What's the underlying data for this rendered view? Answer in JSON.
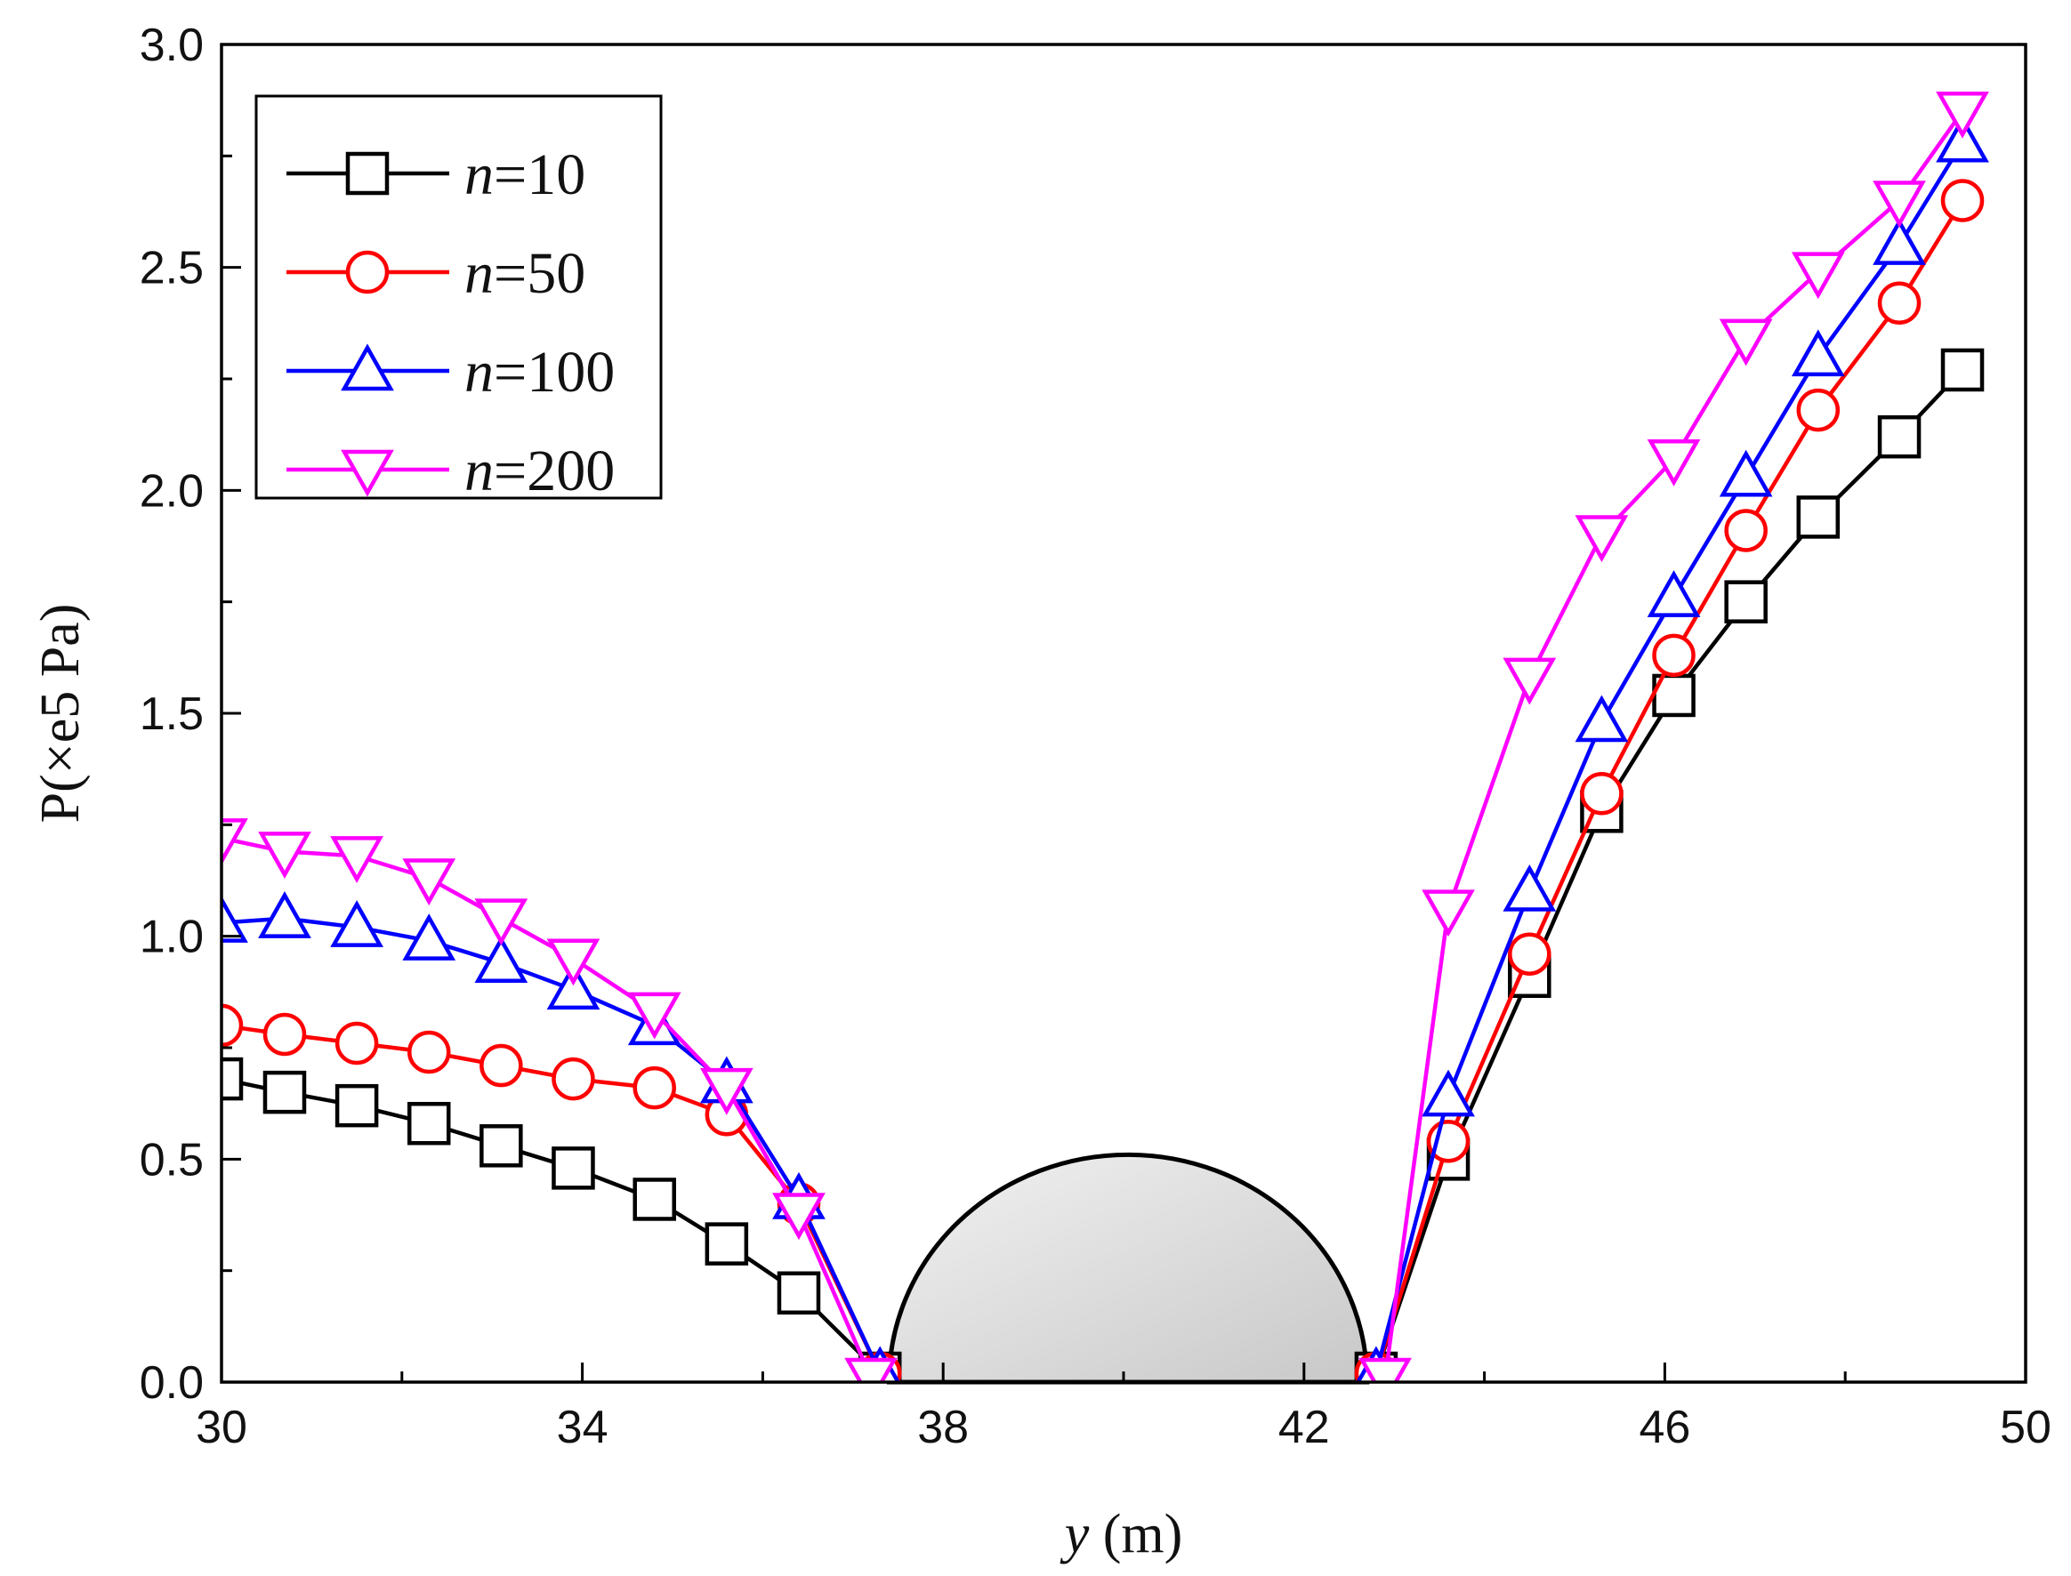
{
  "chart_data": {
    "type": "line",
    "title": "",
    "xlabel_var": "y",
    "xlabel_unit": " (m)",
    "ylabel": "P(×e5 Pa)",
    "xlim": [
      30,
      50
    ],
    "ylim": [
      0,
      3
    ],
    "x_ticks": [
      30,
      34,
      38,
      42,
      46,
      50
    ],
    "x_tick_labels": [
      "30",
      "34",
      "38",
      "42",
      "46",
      "50"
    ],
    "y_ticks": [
      0,
      0.5,
      1,
      1.5,
      2,
      2.5,
      3
    ],
    "y_tick_labels": [
      "0.0",
      "0.5",
      "1.0",
      "1.5",
      "2.0",
      "2.5",
      "3.0"
    ],
    "legend_position": "top-left",
    "obstacle": {
      "shape": "half-ellipse",
      "x_start": 37.4,
      "x_end": 42.7,
      "height": 0.51
    },
    "series": [
      {
        "name": "n=10",
        "var": "n",
        "label": "=10",
        "color": "#000000",
        "marker": "square",
        "segments": [
          [
            [
              30.0,
              0.68
            ],
            [
              30.7,
              0.65
            ],
            [
              31.5,
              0.62
            ],
            [
              32.3,
              0.58
            ],
            [
              33.1,
              0.53
            ],
            [
              33.9,
              0.48
            ],
            [
              34.8,
              0.41
            ],
            [
              35.6,
              0.31
            ],
            [
              36.4,
              0.2
            ],
            [
              37.3,
              0.02
            ]
          ],
          [
            [
              42.8,
              0.02
            ],
            [
              43.6,
              0.5
            ],
            [
              44.5,
              0.91
            ],
            [
              45.3,
              1.28
            ],
            [
              46.1,
              1.54
            ],
            [
              46.9,
              1.75
            ],
            [
              47.7,
              1.94
            ],
            [
              48.6,
              2.12
            ],
            [
              49.3,
              2.27
            ]
          ]
        ]
      },
      {
        "name": "n=50",
        "var": "n",
        "label": "=50",
        "color": "#ff0000",
        "marker": "circle",
        "segments": [
          [
            [
              30.0,
              0.8
            ],
            [
              30.7,
              0.78
            ],
            [
              31.5,
              0.76
            ],
            [
              32.3,
              0.74
            ],
            [
              33.1,
              0.71
            ],
            [
              33.9,
              0.68
            ],
            [
              34.8,
              0.66
            ],
            [
              35.6,
              0.6
            ],
            [
              36.4,
              0.4
            ],
            [
              37.3,
              0.02
            ]
          ],
          [
            [
              42.8,
              0.02
            ],
            [
              43.6,
              0.54
            ],
            [
              44.5,
              0.96
            ],
            [
              45.3,
              1.32
            ],
            [
              46.1,
              1.63
            ],
            [
              46.9,
              1.91
            ],
            [
              47.7,
              2.18
            ],
            [
              48.6,
              2.42
            ],
            [
              49.3,
              2.65
            ]
          ]
        ]
      },
      {
        "name": "n=100",
        "var": "n",
        "label": "=100",
        "color": "#0000ff",
        "marker": "triangle-up",
        "segments": [
          [
            [
              30.0,
              1.03
            ],
            [
              30.7,
              1.04
            ],
            [
              31.5,
              1.02
            ],
            [
              32.3,
              0.99
            ],
            [
              33.1,
              0.94
            ],
            [
              33.9,
              0.88
            ],
            [
              34.8,
              0.8
            ],
            [
              35.6,
              0.67
            ],
            [
              36.4,
              0.41
            ],
            [
              37.3,
              0.02
            ]
          ],
          [
            [
              42.8,
              0.02
            ],
            [
              43.6,
              0.64
            ],
            [
              44.5,
              1.1
            ],
            [
              45.3,
              1.48
            ],
            [
              46.1,
              1.76
            ],
            [
              46.9,
              2.03
            ],
            [
              47.7,
              2.3
            ],
            [
              48.6,
              2.55
            ],
            [
              49.3,
              2.78
            ]
          ]
        ]
      },
      {
        "name": "n=200",
        "var": "n",
        "label": "=200",
        "color": "#ff00ff",
        "marker": "triangle-down",
        "segments": [
          [
            [
              30.0,
              1.22
            ],
            [
              30.7,
              1.19
            ],
            [
              31.5,
              1.18
            ],
            [
              32.3,
              1.13
            ],
            [
              33.1,
              1.04
            ],
            [
              33.9,
              0.95
            ],
            [
              34.8,
              0.83
            ],
            [
              35.6,
              0.66
            ],
            [
              36.4,
              0.38
            ],
            [
              37.2,
              0.01
            ]
          ],
          [
            [
              42.9,
              0.01
            ],
            [
              43.6,
              1.06
            ],
            [
              44.5,
              1.58
            ],
            [
              45.3,
              1.9
            ],
            [
              46.1,
              2.07
            ],
            [
              46.9,
              2.34
            ],
            [
              47.7,
              2.49
            ],
            [
              48.6,
              2.65
            ],
            [
              49.3,
              2.85
            ]
          ]
        ]
      }
    ]
  }
}
